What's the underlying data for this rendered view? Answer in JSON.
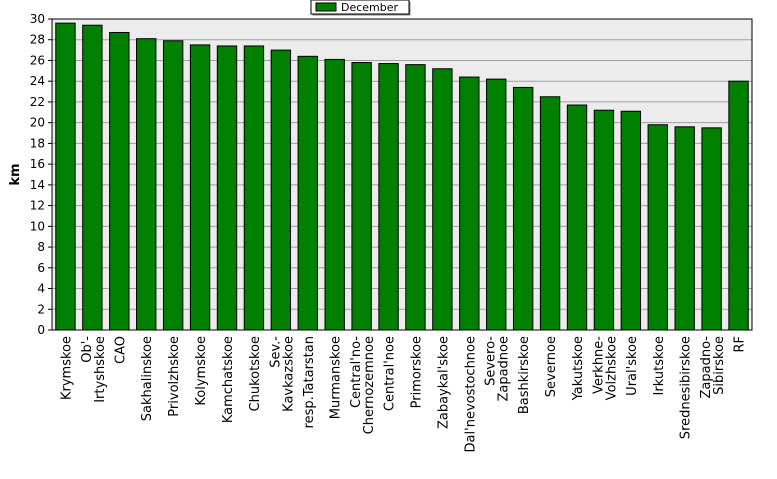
{
  "chart_data": {
    "type": "bar",
    "ylabel": "km",
    "ylim": [
      0,
      30
    ],
    "ytick_step": 2,
    "grid": true,
    "legend_position": "top-center",
    "series": [
      {
        "name": "December",
        "color": "#008000",
        "values": [
          29.6,
          29.4,
          28.7,
          28.1,
          27.9,
          27.5,
          27.4,
          27.4,
          27.0,
          26.4,
          26.1,
          25.8,
          25.7,
          25.6,
          25.2,
          24.4,
          24.2,
          23.4,
          22.5,
          21.7,
          21.2,
          21.1,
          19.8,
          19.6,
          19.5,
          24.0
        ]
      }
    ],
    "categories": [
      [
        "Krymskoe"
      ],
      [
        "Ob'-",
        "Irtyshskoe"
      ],
      [
        "CAO"
      ],
      [
        "Sakhalinskoe"
      ],
      [
        "Privolzhskoe"
      ],
      [
        "Kolymskoe"
      ],
      [
        "Kamchatskoe"
      ],
      [
        "Chukotskoe"
      ],
      [
        "Sev.-",
        "Kavkazskoe"
      ],
      [
        "resp.Tatarstan"
      ],
      [
        "Murmanskoe"
      ],
      [
        "Central'no-",
        "Chernozemnoe"
      ],
      [
        "Central'noe"
      ],
      [
        "Primorskoe"
      ],
      [
        "Zabaykal'skoe"
      ],
      [
        "Dal'nevostochnoe"
      ],
      [
        "Severo-",
        "Zapadnoe"
      ],
      [
        "Bashkirskoe"
      ],
      [
        "Severnoe"
      ],
      [
        "Yakutskoe"
      ],
      [
        "Verkhne-",
        "Volzhskoe"
      ],
      [
        "Ural'skoe"
      ],
      [
        "Irkutskoe"
      ],
      [
        "Srednesibirskoe"
      ],
      [
        "Zapadno-",
        "Sibirskoe"
      ],
      [
        "RF"
      ]
    ]
  }
}
